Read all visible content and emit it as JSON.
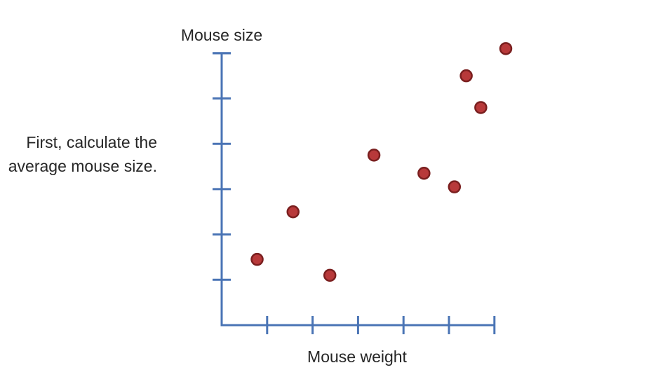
{
  "caption": {
    "line1": "First, calculate the",
    "line2": "average mouse size."
  },
  "chart_data": {
    "type": "scatter",
    "title": "",
    "xlabel": "Mouse weight",
    "ylabel": "Mouse size",
    "xlim": [
      0,
      6
    ],
    "ylim": [
      0,
      6
    ],
    "x_ticks": [
      1,
      2,
      3,
      4,
      5,
      6
    ],
    "y_ticks": [
      1,
      2,
      3,
      4,
      5,
      6
    ],
    "tick_labels_shown": false,
    "grid": false,
    "series": [
      {
        "points": [
          {
            "x": 0.78,
            "y": 1.45
          },
          {
            "x": 1.57,
            "y": 2.5
          },
          {
            "x": 2.38,
            "y": 1.1
          },
          {
            "x": 3.35,
            "y": 3.75
          },
          {
            "x": 4.45,
            "y": 3.35
          },
          {
            "x": 5.12,
            "y": 3.05
          },
          {
            "x": 5.38,
            "y": 5.5
          },
          {
            "x": 5.7,
            "y": 4.8
          },
          {
            "x": 6.25,
            "y": 6.1
          }
        ]
      }
    ],
    "colors": {
      "axis": "#4a74b5",
      "point_fill": "#b8393a",
      "point_stroke": "#7a1f1f"
    }
  }
}
